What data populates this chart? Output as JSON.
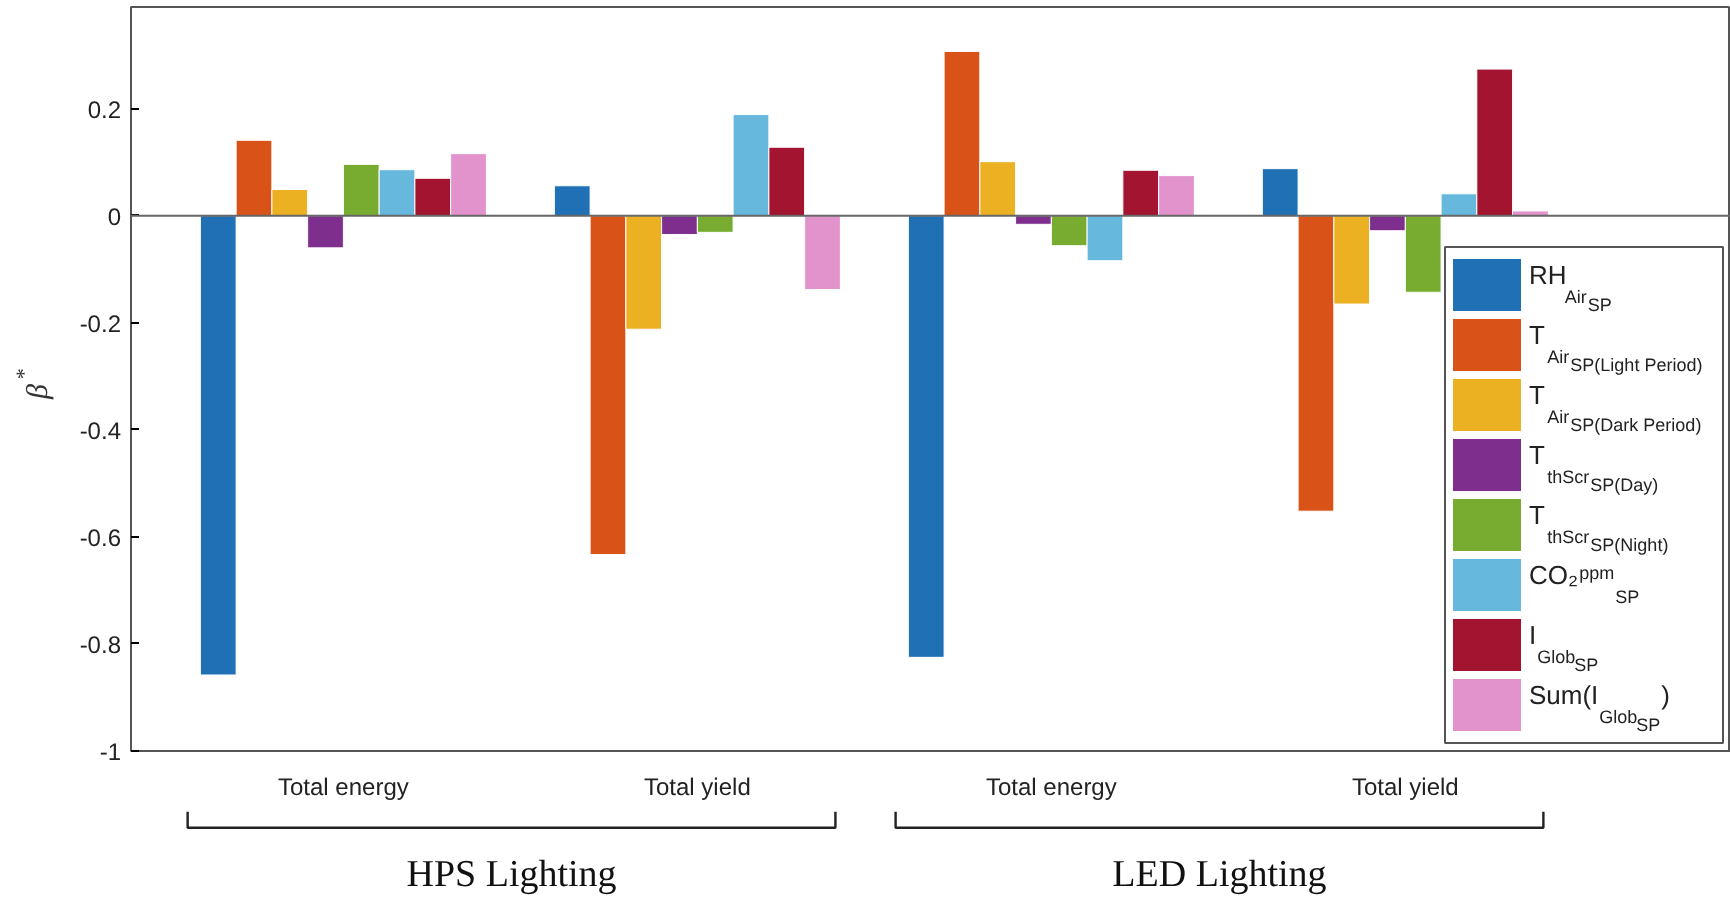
{
  "chart_data": {
    "type": "bar",
    "ylabel": "β$^{*}$",
    "categories": [
      "Total energy",
      "Total yield",
      "Total energy",
      "Total yield"
    ],
    "annotations": [
      "HPS Lighting",
      "LED Lighting"
    ],
    "series": [
      {
        "name": "RH$_{Air}$$_{SP}$",
        "color": "#1f70b5",
        "values": [
          -0.858,
          0.056,
          -0.825,
          0.088
        ]
      },
      {
        "name": "T$_{Air}$$_{SP(Light Period)}$",
        "color": "#d95319",
        "values": [
          0.141,
          -0.633,
          0.307,
          -0.552
        ]
      },
      {
        "name": "T$_{Air}$$_{SP(Dark Period)}$",
        "color": "#ecb123",
        "values": [
          0.049,
          -0.212,
          0.101,
          -0.165
        ]
      },
      {
        "name": "T$_{thScr}$$_{SP(Day)}$",
        "color": "#7e2f8e",
        "values": [
          -0.06,
          -0.035,
          -0.016,
          -0.028
        ]
      },
      {
        "name": "T$_{thScr}$$_{SP(Night)}$",
        "color": "#78ac30",
        "values": [
          0.096,
          -0.031,
          -0.056,
          -0.143
        ]
      },
      {
        "name": "CO₂$^{ppm}$$_{SP}$",
        "color": "#66b8dd",
        "values": [
          0.086,
          0.189,
          -0.084,
          0.041
        ]
      },
      {
        "name": "I$_{Glob}$$_{SP}$",
        "color": "#a2142f",
        "values": [
          0.07,
          0.128,
          0.085,
          0.274
        ]
      },
      {
        "name": "Sum(I$_{Glob}$$_{SP}$)",
        "color": "#e293cb",
        "values": [
          0.116,
          -0.138,
          0.075,
          0.009
        ]
      }
    ],
    "ylim": [
      -1,
      0.39
    ],
    "yticks": [
      -1,
      -0.8,
      -0.6,
      -0.4,
      -0.2,
      0,
      0.2
    ],
    "legend": "bottom right"
  }
}
